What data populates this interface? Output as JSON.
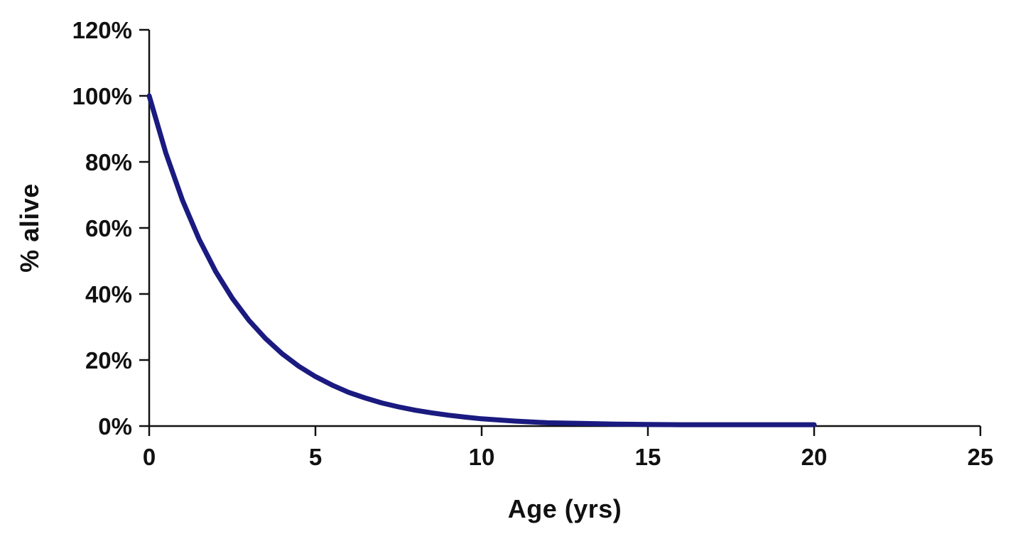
{
  "chart_data": {
    "type": "line",
    "title": "",
    "xlabel": "Age (yrs)",
    "ylabel": "% alive",
    "xlim": [
      0,
      25
    ],
    "ylim": [
      0,
      120
    ],
    "grid": false,
    "legend": "none",
    "axis_color": "#111111",
    "line_color": "#1a1a80",
    "line_width": 7,
    "x_ticks": [
      {
        "value": 0,
        "label": "0"
      },
      {
        "value": 5,
        "label": "5"
      },
      {
        "value": 10,
        "label": "10"
      },
      {
        "value": 15,
        "label": "15"
      },
      {
        "value": 20,
        "label": "20"
      },
      {
        "value": 25,
        "label": "25"
      }
    ],
    "y_ticks": [
      {
        "value": 0,
        "label": "0%"
      },
      {
        "value": 20,
        "label": "20%"
      },
      {
        "value": 40,
        "label": "40%"
      },
      {
        "value": 60,
        "label": "60%"
      },
      {
        "value": 80,
        "label": "80%"
      },
      {
        "value": 100,
        "label": "100%"
      },
      {
        "value": 120,
        "label": "120%"
      }
    ],
    "series": [
      {
        "name": "% alive",
        "x": [
          0,
          0.5,
          1,
          1.5,
          2,
          2.5,
          3,
          3.5,
          4,
          4.5,
          5,
          5.5,
          6,
          6.5,
          7,
          7.5,
          8,
          8.5,
          9,
          9.5,
          10,
          11,
          12,
          13,
          14,
          15,
          16,
          17,
          18,
          19,
          20
        ],
        "y": [
          100,
          82.7,
          68.4,
          56.6,
          46.8,
          38.7,
          32.0,
          26.5,
          21.9,
          18.1,
          15.0,
          12.4,
          10.2,
          8.5,
          7.0,
          5.8,
          4.8,
          4.0,
          3.3,
          2.7,
          2.2,
          1.5,
          1.0,
          0.8,
          0.6,
          0.5,
          0.4,
          0.4,
          0.4,
          0.4,
          0.4
        ]
      }
    ]
  }
}
